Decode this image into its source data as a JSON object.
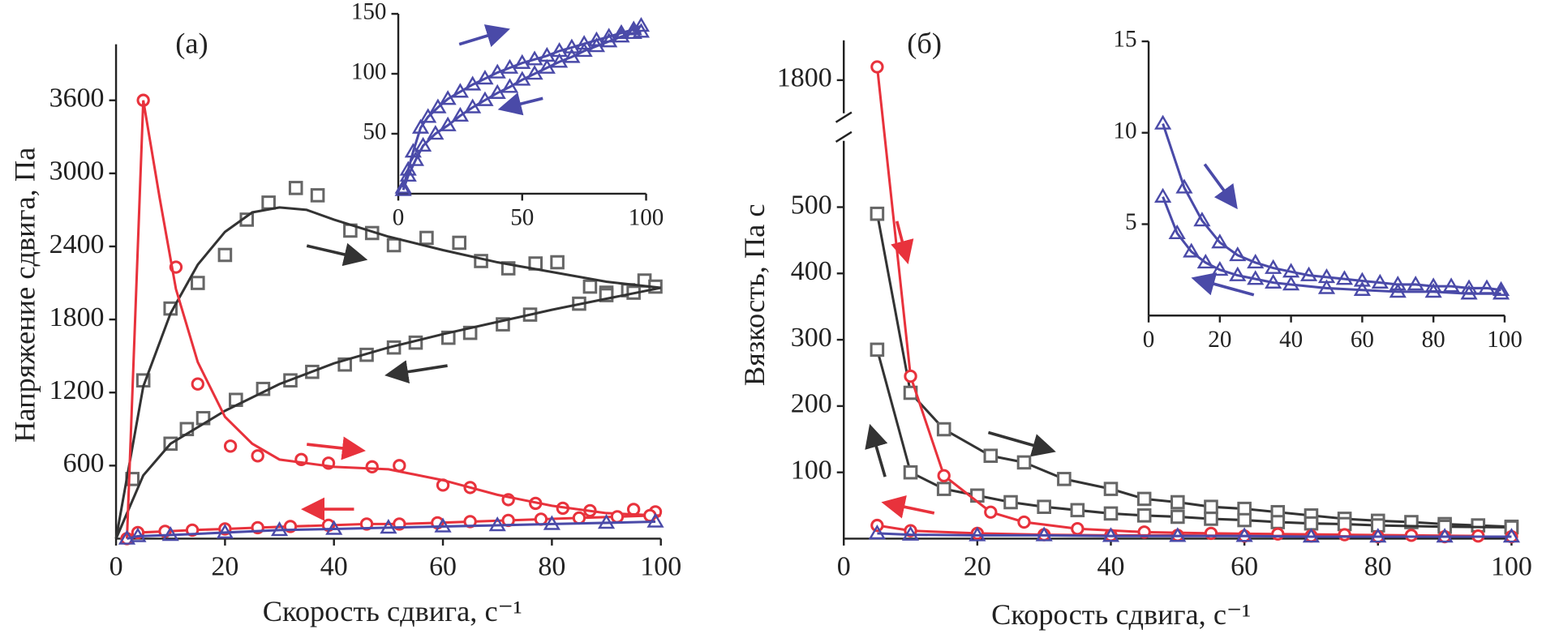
{
  "chart_data": [
    {
      "type": "line",
      "panel_label": "(a)",
      "y_label": "Напряжение сдвига, Па",
      "x_label": "Скорость сдвига, с⁻¹",
      "xlim": [
        0,
        100
      ],
      "xticks": [
        0,
        20,
        40,
        60,
        80,
        100
      ],
      "ylim": [
        0,
        4060
      ],
      "yticks": [
        600,
        1200,
        1800,
        2400,
        3000,
        3600
      ],
      "series": [
        {
          "color": "#333333",
          "marker": "square",
          "line": false,
          "x": [
            3,
            5,
            10,
            15,
            20,
            24,
            28,
            33,
            37,
            43,
            47,
            51,
            57,
            63,
            67,
            72,
            77,
            81,
            87,
            90,
            94,
            97,
            99
          ],
          "values": [
            490,
            1300,
            1890,
            2100,
            2330,
            2620,
            2760,
            2880,
            2820,
            2530,
            2510,
            2410,
            2470,
            2430,
            2280,
            2220,
            2260,
            2270,
            2070,
            2020,
            2040,
            2120,
            2070
          ]
        },
        {
          "color": "#333333",
          "marker": "square",
          "line": false,
          "x": [
            10,
            13,
            16,
            22,
            27,
            32,
            36,
            42,
            46,
            51,
            55,
            61,
            65,
            71,
            76,
            85,
            90,
            95
          ],
          "values": [
            780,
            900,
            990,
            1140,
            1230,
            1300,
            1370,
            1430,
            1510,
            1570,
            1610,
            1650,
            1690,
            1760,
            1840,
            1930,
            2000,
            2020
          ]
        },
        {
          "color": "#333333",
          "marker": "none",
          "line": true,
          "x": [
            0,
            5,
            10,
            15,
            20,
            25,
            30,
            35,
            40,
            50,
            60,
            70,
            80,
            90,
            100
          ],
          "values": [
            0,
            1250,
            1850,
            2250,
            2520,
            2680,
            2720,
            2700,
            2620,
            2480,
            2370,
            2270,
            2190,
            2110,
            2060
          ]
        },
        {
          "color": "#333333",
          "marker": "none",
          "line": true,
          "x": [
            0,
            5,
            10,
            20,
            30,
            40,
            50,
            60,
            70,
            80,
            90,
            100
          ],
          "values": [
            0,
            520,
            780,
            1050,
            1270,
            1440,
            1570,
            1680,
            1780,
            1880,
            1970,
            2060
          ]
        },
        {
          "color": "#e8323c",
          "marker": "circle",
          "line": false,
          "x": [
            2,
            5,
            11,
            15,
            21,
            26,
            34,
            39,
            47,
            52,
            60,
            65,
            72,
            77,
            82,
            87,
            95,
            99
          ],
          "values": [
            0,
            3600,
            2230,
            1270,
            760,
            680,
            650,
            620,
            590,
            600,
            440,
            420,
            320,
            290,
            250,
            230,
            240,
            220
          ]
        },
        {
          "color": "#e8323c",
          "marker": "none",
          "line": true,
          "x": [
            2,
            5,
            8,
            11,
            15,
            20,
            25,
            30,
            40,
            50,
            60,
            70,
            80,
            90,
            100
          ],
          "values": [
            0,
            3600,
            2800,
            2050,
            1450,
            1000,
            780,
            650,
            590,
            570,
            480,
            360,
            270,
            210,
            190
          ]
        },
        {
          "color": "#e8323c",
          "marker": "circle",
          "line": true,
          "x": [
            4,
            9,
            14,
            20,
            26,
            32,
            39,
            46,
            52,
            59,
            65,
            72,
            78,
            85,
            92,
            98
          ],
          "values": [
            50,
            60,
            70,
            80,
            90,
            100,
            110,
            120,
            120,
            130,
            140,
            150,
            160,
            170,
            180,
            190
          ]
        },
        {
          "color": "#4a4aa8",
          "marker": "triangle",
          "line": true,
          "x": [
            2,
            4,
            10,
            20,
            30,
            40,
            50,
            60,
            70,
            80,
            90,
            99
          ],
          "values": [
            0,
            20,
            30,
            50,
            70,
            80,
            90,
            100,
            110,
            120,
            130,
            140
          ]
        }
      ]
    },
    {
      "type": "line",
      "xlim": [
        0,
        100
      ],
      "xticks": [
        0,
        50,
        100
      ],
      "ylim": [
        0,
        150
      ],
      "yticks": [
        50,
        100,
        150
      ],
      "series": [
        {
          "color": "#4a4aa8",
          "marker": "triangle",
          "line": true,
          "x": [
            2,
            4,
            6,
            9,
            12,
            16,
            20,
            25,
            30,
            35,
            40,
            45,
            50,
            55,
            60,
            65,
            70,
            75,
            80,
            85,
            90,
            95,
            98
          ],
          "values": [
            5,
            20,
            35,
            55,
            64,
            72,
            79,
            85,
            91,
            96,
            101,
            105,
            109,
            112,
            115,
            119,
            122,
            125,
            128,
            131,
            134,
            137,
            140
          ]
        },
        {
          "color": "#4a4aa8",
          "marker": "triangle",
          "line": true,
          "x": [
            2,
            4,
            7,
            10,
            15,
            20,
            25,
            30,
            35,
            40,
            45,
            50,
            55,
            60,
            65,
            70,
            75,
            80,
            85,
            90,
            95,
            98
          ],
          "values": [
            3,
            15,
            28,
            40,
            50,
            57,
            65,
            72,
            78,
            84,
            89,
            95,
            100,
            105,
            110,
            114,
            119,
            123,
            127,
            131,
            134,
            135
          ]
        }
      ]
    },
    {
      "type": "line",
      "panel_label": "(б)",
      "y_label": "Вязкость, Па с",
      "x_label": "Скорость сдвига, с⁻¹",
      "xlim": [
        0,
        100
      ],
      "xticks": [
        0,
        20,
        40,
        60,
        80,
        100
      ],
      "ylim": [
        0,
        1860
      ],
      "ybreak": [
        600,
        1750
      ],
      "yticks": [
        100,
        200,
        300,
        400,
        500,
        1800
      ],
      "series": [
        {
          "color": "#333333",
          "marker": "square",
          "line": true,
          "x": [
            5,
            10,
            15,
            22,
            27,
            33,
            40,
            45,
            50,
            55,
            60,
            65,
            70,
            75,
            80,
            85,
            90,
            95,
            100
          ],
          "values": [
            490,
            220,
            165,
            125,
            115,
            90,
            75,
            60,
            55,
            48,
            45,
            40,
            35,
            30,
            27,
            25,
            22,
            20,
            18
          ]
        },
        {
          "color": "#333333",
          "marker": "square",
          "line": true,
          "x": [
            5,
            10,
            15,
            20,
            25,
            30,
            35,
            40,
            45,
            50,
            55,
            60,
            65,
            70,
            75,
            80,
            90,
            100
          ],
          "values": [
            285,
            100,
            75,
            65,
            55,
            48,
            43,
            38,
            35,
            33,
            30,
            28,
            25,
            23,
            22,
            20,
            18,
            17
          ]
        },
        {
          "color": "#e8323c",
          "marker": "circle",
          "line": true,
          "x": [
            5,
            10,
            15,
            22,
            27,
            35,
            45,
            55,
            65,
            75,
            85,
            95
          ],
          "values": [
            1820,
            245,
            95,
            40,
            25,
            15,
            10,
            8,
            7,
            6,
            5,
            4
          ]
        },
        {
          "color": "#e8323c",
          "marker": "circle",
          "line": true,
          "x": [
            5,
            10,
            20,
            30,
            40,
            50,
            60,
            70,
            80,
            90,
            100
          ],
          "values": [
            20,
            12,
            8,
            6,
            5,
            5,
            4,
            4,
            3,
            3,
            3
          ]
        },
        {
          "color": "#4a4aa8",
          "marker": "triangle",
          "line": true,
          "x": [
            5,
            10,
            20,
            30,
            40,
            50,
            60,
            70,
            80,
            90,
            100
          ],
          "values": [
            8,
            6,
            5,
            5,
            4,
            4,
            4,
            3,
            3,
            3,
            3
          ]
        }
      ]
    },
    {
      "type": "line",
      "xlim": [
        0,
        100
      ],
      "xticks": [
        0,
        20,
        40,
        60,
        80,
        100
      ],
      "ylim": [
        0,
        15
      ],
      "yticks": [
        5,
        10,
        15
      ],
      "series": [
        {
          "color": "#4a4aa8",
          "marker": "triangle",
          "line": true,
          "x": [
            4,
            10,
            15,
            20,
            25,
            30,
            35,
            40,
            45,
            50,
            55,
            60,
            65,
            70,
            75,
            80,
            85,
            90,
            95,
            99
          ],
          "values": [
            10.5,
            7,
            5.2,
            4,
            3.3,
            2.9,
            2.6,
            2.4,
            2.2,
            2.1,
            2,
            1.9,
            1.8,
            1.7,
            1.7,
            1.6,
            1.6,
            1.5,
            1.5,
            1.4
          ]
        },
        {
          "color": "#4a4aa8",
          "marker": "triangle",
          "line": true,
          "x": [
            4,
            8,
            12,
            16,
            20,
            25,
            30,
            35,
            40,
            50,
            60,
            70,
            80,
            90,
            99
          ],
          "values": [
            6.5,
            4.5,
            3.5,
            2.9,
            2.5,
            2.2,
            2,
            1.8,
            1.7,
            1.5,
            1.4,
            1.3,
            1.3,
            1.2,
            1.2
          ]
        }
      ]
    }
  ]
}
